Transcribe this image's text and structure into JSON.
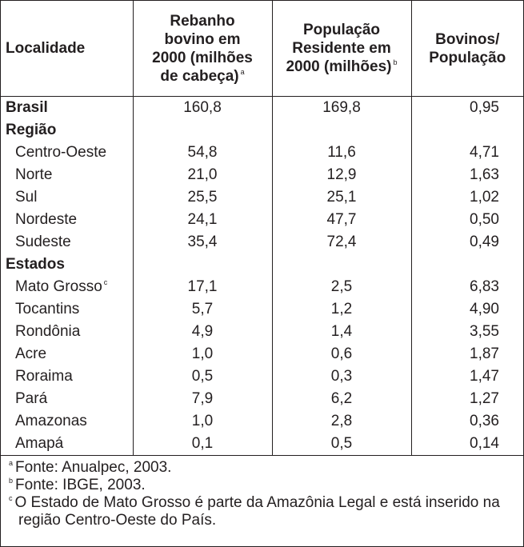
{
  "headers": {
    "localidade": "Localidade",
    "rebanho": [
      "Rebanho",
      "bovino em",
      "2000 (milhões",
      "de cabeça)"
    ],
    "rebanho_note": "a",
    "populacao": [
      "População",
      "Residente em",
      "2000 (milhões)"
    ],
    "populacao_note": "b",
    "ratio": [
      "Bovinos/",
      "População"
    ]
  },
  "rows": [
    {
      "label": "Brasil",
      "type": "total",
      "rebanho": "160,8",
      "pop": "169,8",
      "ratio": "0,95"
    },
    {
      "label": "Região",
      "type": "section",
      "rebanho": "",
      "pop": "",
      "ratio": ""
    },
    {
      "label": "Centro-Oeste",
      "type": "item",
      "rebanho": "54,8",
      "pop": "11,6",
      "ratio": "4,71"
    },
    {
      "label": "Norte",
      "type": "item",
      "rebanho": "21,0",
      "pop": "12,9",
      "ratio": "1,63"
    },
    {
      "label": "Sul",
      "type": "item",
      "rebanho": "25,5",
      "pop": "25,1",
      "ratio": "1,02"
    },
    {
      "label": "Nordeste",
      "type": "item",
      "rebanho": "24,1",
      "pop": "47,7",
      "ratio": "0,50"
    },
    {
      "label": "Sudeste",
      "type": "item",
      "rebanho": "35,4",
      "pop": "72,4",
      "ratio": "0,49"
    },
    {
      "label": "Estados",
      "type": "section",
      "rebanho": "",
      "pop": "",
      "ratio": ""
    },
    {
      "label": "Mato Grosso",
      "note": "c",
      "type": "item",
      "rebanho": "17,1",
      "pop": "2,5",
      "ratio": "6,83"
    },
    {
      "label": "Tocantins",
      "type": "item",
      "rebanho": "5,7",
      "pop": "1,2",
      "ratio": "4,90"
    },
    {
      "label": "Rondônia",
      "type": "item",
      "rebanho": "4,9",
      "pop": "1,4",
      "ratio": "3,55"
    },
    {
      "label": "Acre",
      "type": "item",
      "rebanho": "1,0",
      "pop": "0,6",
      "ratio": "1,87"
    },
    {
      "label": "Roraima",
      "type": "item",
      "rebanho": "0,5",
      "pop": "0,3",
      "ratio": "1,47"
    },
    {
      "label": "Pará",
      "type": "item",
      "rebanho": "7,9",
      "pop": "6,2",
      "ratio": "1,27"
    },
    {
      "label": "Amazonas",
      "type": "item",
      "rebanho": "1,0",
      "pop": "2,8",
      "ratio": "0,36"
    },
    {
      "label": "Amapá",
      "type": "item",
      "rebanho": "0,1",
      "pop": "0,5",
      "ratio": "0,14"
    }
  ],
  "footnotes": [
    {
      "mark": "a",
      "text": "Fonte: Anualpec, 2003."
    },
    {
      "mark": "b",
      "text": "Fonte: IBGE, 2003."
    },
    {
      "mark": "c",
      "text": "O Estado de Mato Grosso é parte da Amazônia Legal e está inserido na região Centro-Oeste do País."
    }
  ]
}
